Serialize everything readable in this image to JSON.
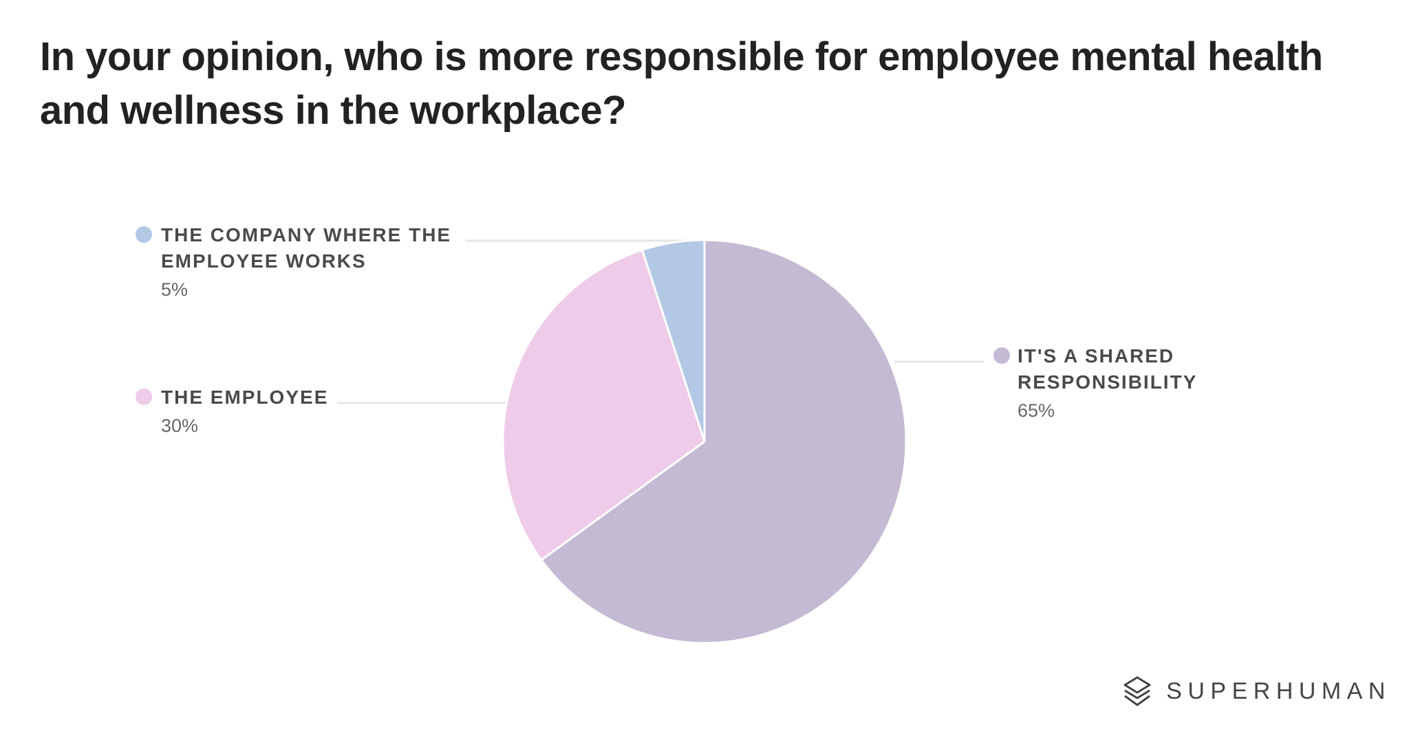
{
  "title": "In your opinion, who is more responsible for employee mental health and wellness in the workplace?",
  "brand": {
    "name": "SUPERHUMAN",
    "icon": "superhuman-logo-icon"
  },
  "colors": {
    "background": "#ffffff",
    "title_text": "#222222",
    "leader_line": "#e6e6e6",
    "slice_border": "#ffffff"
  },
  "chart_data": {
    "type": "pie",
    "title": "In your opinion, who is more responsible for employee mental health and wellness in the workplace?",
    "unit": "%",
    "start_angle": "12 o'clock",
    "direction": "clockwise",
    "slices": [
      {
        "label": "IT'S A SHARED RESPONSIBILITY",
        "label_lines": [
          "IT'S A SHARED",
          "RESPONSIBILITY"
        ],
        "value": 65,
        "display": "65%",
        "color": "#c4bad3",
        "legend_side": "right"
      },
      {
        "label": "THE EMPLOYEE",
        "label_lines": [
          "THE EMPLOYEE"
        ],
        "value": 30,
        "display": "30%",
        "color": "#eecbe8",
        "legend_side": "left"
      },
      {
        "label": "THE COMPANY WHERE THE EMPLOYEE WORKS",
        "label_lines": [
          "THE COMPANY WHERE THE",
          "EMPLOYEE WORKS"
        ],
        "value": 5,
        "display": "5%",
        "color": "#b3c8e5",
        "legend_side": "left"
      }
    ]
  }
}
